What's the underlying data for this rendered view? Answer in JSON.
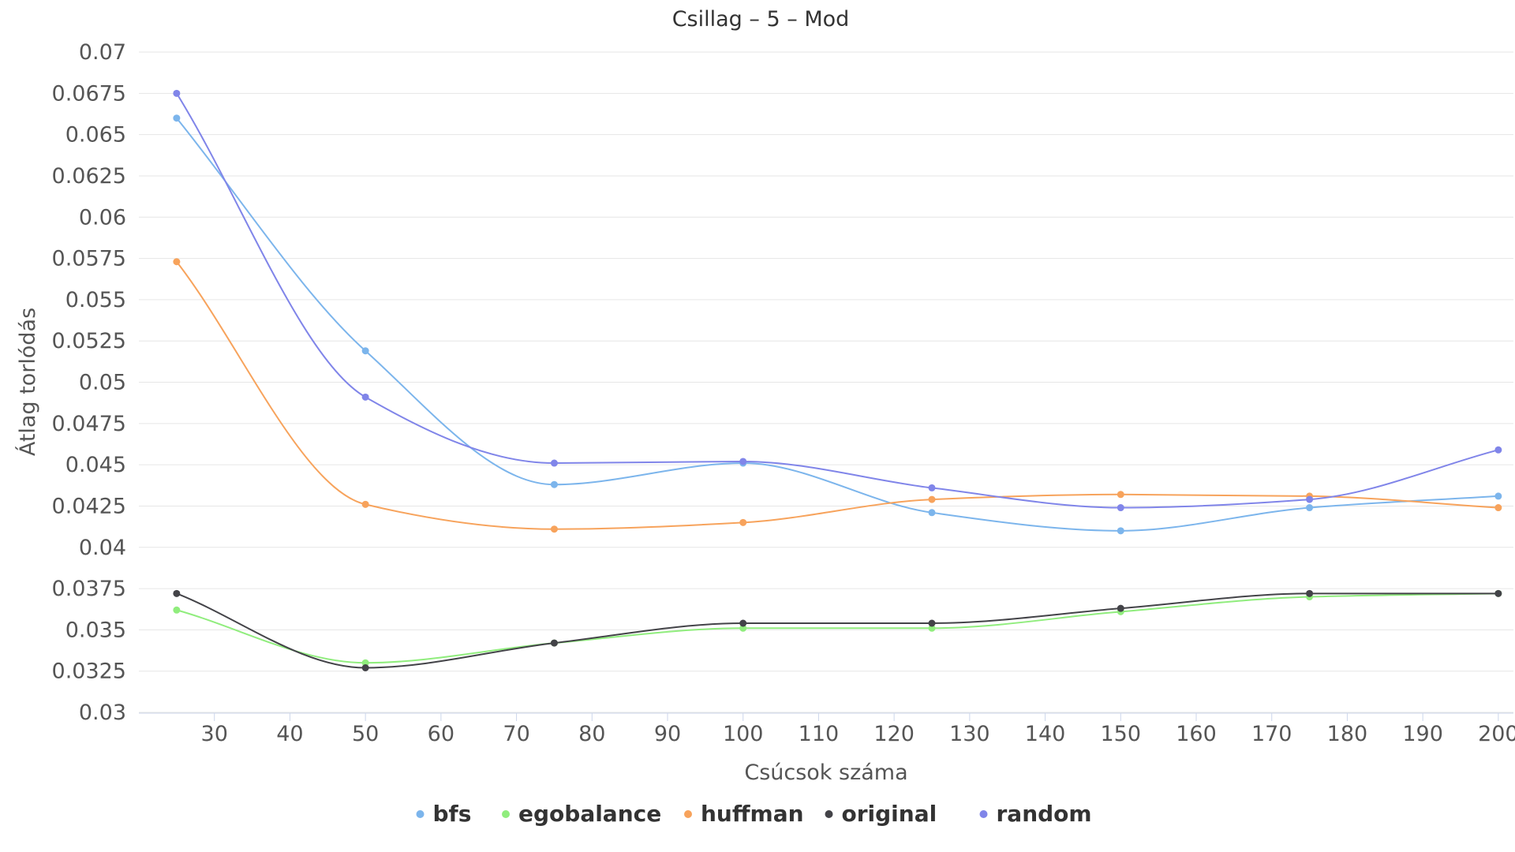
{
  "chart_data": {
    "type": "line",
    "title": "Csillag – 5 – Mod",
    "xlabel": "Csúcsok száma",
    "ylabel": "Átlag torlódás",
    "x": [
      25,
      50,
      75,
      100,
      125,
      150,
      175,
      200
    ],
    "xlim": [
      20,
      202
    ],
    "ylim": [
      0.03,
      0.07
    ],
    "x_ticks": [
      "30",
      "40",
      "50",
      "60",
      "70",
      "80",
      "90",
      "100",
      "110",
      "120",
      "130",
      "140",
      "150",
      "160",
      "170",
      "180",
      "190",
      "200"
    ],
    "y_ticks": [
      "0.03",
      "0.0325",
      "0.035",
      "0.0375",
      "0.04",
      "0.0425",
      "0.045",
      "0.0475",
      "0.05",
      "0.0525",
      "0.055",
      "0.0575",
      "0.06",
      "0.0625",
      "0.065",
      "0.0675",
      "0.07"
    ],
    "grid": true,
    "legend_position": "bottom-center",
    "series": [
      {
        "name": "bfs",
        "color": "#7cb5ec",
        "values": [
          0.066,
          0.0519,
          0.0438,
          0.0451,
          0.0421,
          0.041,
          0.0424,
          0.0431
        ]
      },
      {
        "name": "egobalance",
        "color": "#90ed7d",
        "values": [
          0.0362,
          0.033,
          0.0342,
          0.0351,
          0.0351,
          0.0361,
          0.037,
          0.0372
        ]
      },
      {
        "name": "huffman",
        "color": "#f7a35c",
        "values": [
          0.0573,
          0.0426,
          0.0411,
          0.0415,
          0.0429,
          0.0432,
          0.0431,
          0.0424
        ]
      },
      {
        "name": "original",
        "color": "#434348",
        "values": [
          0.0372,
          0.0327,
          0.0342,
          0.0354,
          0.0354,
          0.0363,
          0.0372,
          0.0372
        ]
      },
      {
        "name": "random",
        "color": "#8085e9",
        "values": [
          0.0675,
          0.0491,
          0.0451,
          0.0452,
          0.0436,
          0.0424,
          0.0429,
          0.0459
        ]
      }
    ]
  }
}
